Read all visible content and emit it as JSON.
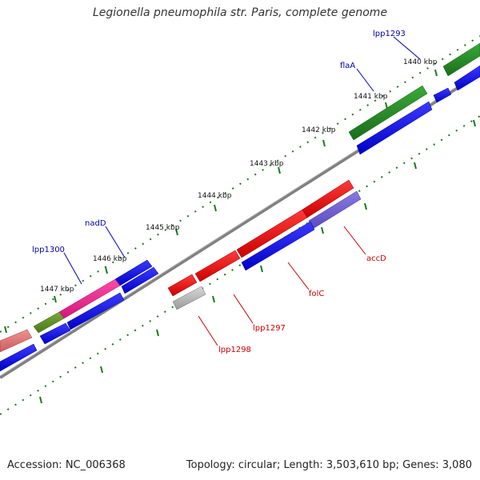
{
  "title": "Legionella pneumophila str. Paris, complete genome",
  "footer": {
    "accession": "Accession: NC_006368",
    "summary": "Topology: circular; Length: 3,503,610 bp; Genes: 3,080"
  },
  "colors": {
    "backbone": "#808080",
    "tick": "#1a7a1a",
    "forward_cds": "#0000ee",
    "reverse_cds": "#ee0000",
    "pseudo": "#b0b0b0",
    "forward_label": "#0000aa",
    "reverse_label": "#cc0000"
  },
  "scale_ticks": [
    {
      "label": "1440 kbp"
    },
    {
      "label": "1441 kbp"
    },
    {
      "label": "1442 kbp"
    },
    {
      "label": "1443 kbp"
    },
    {
      "label": "1444 kbp"
    },
    {
      "label": "1445 kbp"
    },
    {
      "label": "1446 kbp"
    },
    {
      "label": "1447 kbp"
    }
  ],
  "gene_labels": {
    "lpp1293": "lpp1293",
    "flaA": "flaA",
    "nadD": "nadD",
    "lpp1300": "lpp1300",
    "accD": "accD",
    "folC": "folC",
    "lpp1297": "lpp1297",
    "lpp1298": "lpp1298"
  }
}
